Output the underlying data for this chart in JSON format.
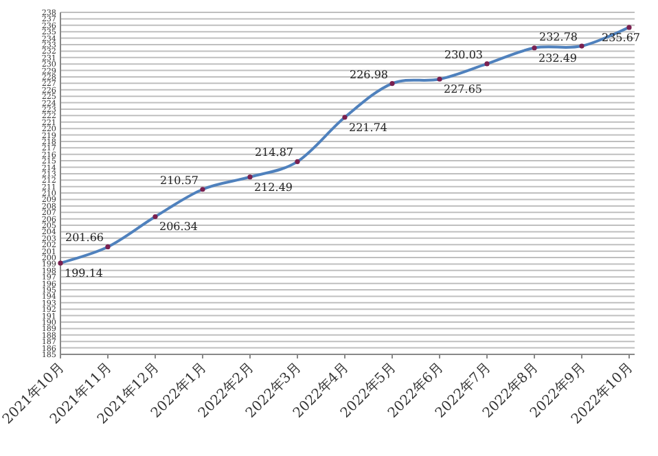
{
  "chart_data": {
    "type": "line",
    "categories": [
      "2021年10月",
      "2021年11月",
      "2021年12月",
      "2022年1月",
      "2022年2月",
      "2022年3月",
      "2022年4月",
      "2022年5月",
      "2022年6月",
      "2022年7月",
      "2022年8月",
      "2022年9月",
      "2022年10月"
    ],
    "series": [
      {
        "color": "#4f81bd",
        "values": [
          199.14,
          201.66,
          206.34,
          210.57,
          212.49,
          214.87,
          221.74,
          226.98,
          227.65,
          230.03,
          232.49,
          232.78,
          235.67
        ]
      }
    ],
    "ylim": [
      185,
      238
    ],
    "yticks": [
      185,
      186,
      187,
      188,
      189,
      190,
      191,
      192,
      193,
      194,
      195,
      196,
      197,
      198,
      199,
      200,
      201,
      202,
      203,
      204,
      205,
      206,
      207,
      208,
      209,
      210,
      211,
      212,
      213,
      214,
      215,
      216,
      217,
      218,
      219,
      220,
      221,
      222,
      223,
      224,
      225,
      226,
      227,
      228,
      229,
      230,
      231,
      232,
      233,
      234,
      235,
      236,
      237,
      238
    ],
    "grid": "y",
    "data_labels": true,
    "marker": "circle",
    "line_style": "solid"
  }
}
